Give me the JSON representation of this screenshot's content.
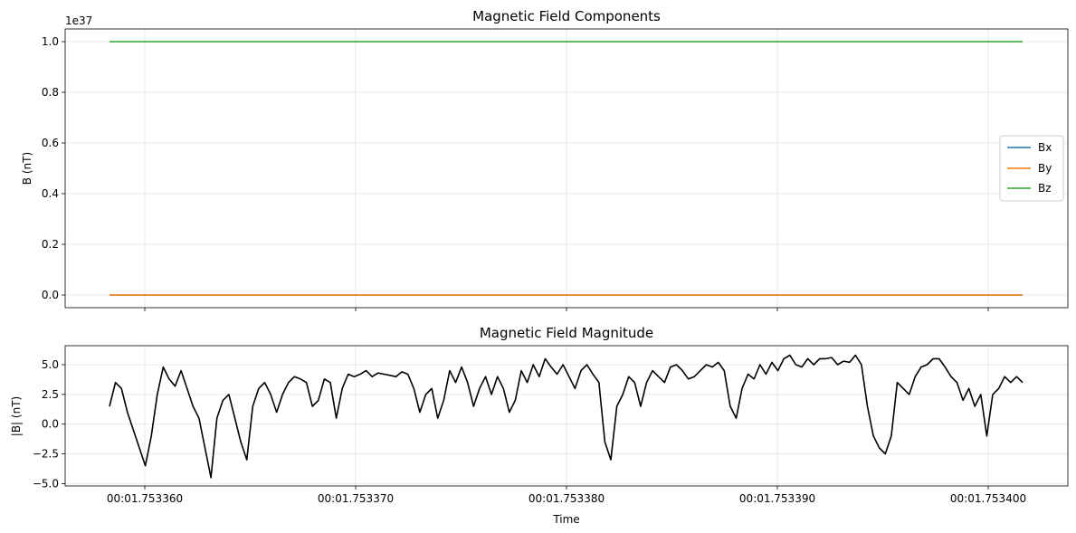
{
  "chart_data": [
    {
      "type": "line",
      "title": "Magnetic Field Components",
      "xlabel": "",
      "ylabel": "B (nT)",
      "y_offset_text": "1e37",
      "ylim": [
        -0.05,
        1.05
      ],
      "yticks": [
        0.0,
        0.2,
        0.4,
        0.6,
        0.8,
        1.0
      ],
      "ytick_labels": [
        "0.0",
        "0.2",
        "0.4",
        "0.6",
        "0.8",
        "1.0"
      ],
      "grid": true,
      "legend_position": "right",
      "series": [
        {
          "name": "Bx",
          "color": "#1f77b4",
          "values": [
            0.0,
            0.0
          ]
        },
        {
          "name": "By",
          "color": "#ff7f0e",
          "values": [
            0.0,
            0.0
          ]
        },
        {
          "name": "Bz",
          "color": "#2ca02c",
          "values": [
            1.0,
            1.0
          ]
        }
      ],
      "x": [
        0,
        1
      ]
    },
    {
      "type": "line",
      "title": "Magnetic Field Magnitude",
      "xlabel": "Time",
      "ylabel": "|B| (nT)",
      "ylim": [
        -5.2,
        6.6
      ],
      "yticks": [
        -5.0,
        -2.5,
        0.0,
        2.5,
        5.0
      ],
      "ytick_labels": [
        "−5.0",
        "−2.5",
        "0.0",
        "2.5",
        "5.0"
      ],
      "xtick_labels": [
        "00:01.753360",
        "00:01.753370",
        "00:01.753380",
        "00:01.753390",
        "00:01.753400"
      ],
      "grid": true,
      "series": [
        {
          "name": "",
          "color": "#000000",
          "values": [
            1.5,
            3.5,
            3.0,
            1.0,
            -0.5,
            -2.0,
            -3.5,
            -1.0,
            2.5,
            4.8,
            3.8,
            3.2,
            4.5,
            3.0,
            1.5,
            0.5,
            -2.0,
            -4.5,
            0.5,
            2.0,
            2.5,
            0.5,
            -1.5,
            -3.0,
            1.5,
            3.0,
            3.5,
            2.5,
            1.0,
            2.5,
            3.5,
            4.0,
            3.8,
            3.5,
            1.5,
            2.0,
            3.8,
            3.5,
            0.5,
            3.0,
            4.2,
            4.0,
            4.2,
            4.5,
            4.0,
            4.3,
            4.2,
            4.1,
            4.0,
            4.4,
            4.2,
            3.0,
            1.0,
            2.5,
            3.0,
            0.5,
            2.0,
            4.5,
            3.5,
            4.8,
            3.5,
            1.5,
            3.0,
            4.0,
            2.5,
            4.0,
            3.0,
            1.0,
            2.0,
            4.5,
            3.5,
            5.0,
            4.0,
            5.5,
            4.8,
            4.2,
            5.0,
            4.0,
            3.0,
            4.5,
            5.0,
            4.2,
            3.5,
            -1.5,
            -3.0,
            1.5,
            2.5,
            4.0,
            3.5,
            1.5,
            3.5,
            4.5,
            4.0,
            3.5,
            4.8,
            5.0,
            4.5,
            3.8,
            4.0,
            4.5,
            5.0,
            4.8,
            5.2,
            4.5,
            1.5,
            0.5,
            3.0,
            4.2,
            3.8,
            5.0,
            4.2,
            5.2,
            4.5,
            5.5,
            5.8,
            5.0,
            4.8,
            5.5,
            5.0,
            5.5,
            5.5,
            5.6,
            5.0,
            5.3,
            5.2,
            5.8,
            5.0,
            1.5,
            -1.0,
            -2.0,
            -2.5,
            -1.0,
            3.5,
            3.0,
            2.5,
            4.0,
            4.8,
            5.0,
            5.5,
            5.5,
            4.8,
            4.0,
            3.5,
            2.0,
            3.0,
            1.5,
            2.5,
            -1.0,
            2.5,
            3.0,
            4.0,
            3.5,
            4.0,
            3.5
          ]
        }
      ]
    }
  ]
}
